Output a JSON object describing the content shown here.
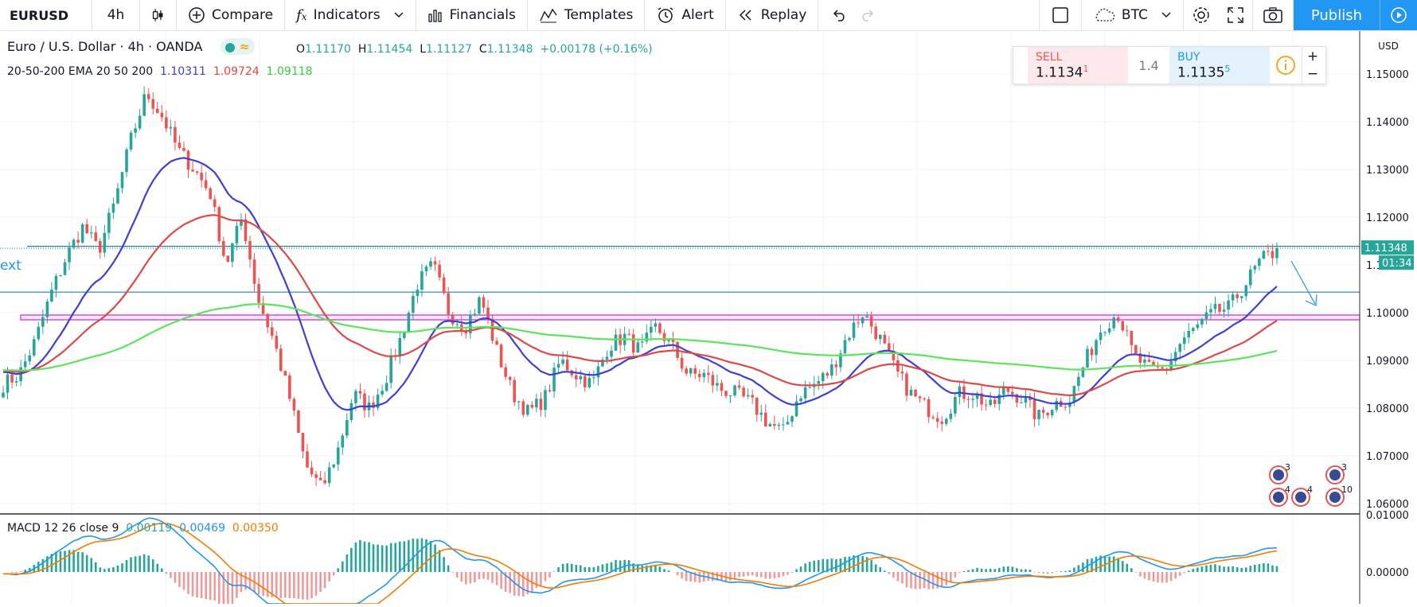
{
  "toolbar": {
    "symbol": "EURUSD",
    "interval": "4h",
    "compare": "Compare",
    "indicators": "Indicators",
    "financials": "Financials",
    "templates": "Templates",
    "alert": "Alert",
    "replay": "Replay",
    "btc": "BTC",
    "publish": "Publish"
  },
  "legend": {
    "title": "Euro / U.S. Dollar · 4h · OANDA",
    "o_label": "O",
    "o": "1.11170",
    "h_label": "H",
    "h": "1.11454",
    "l_label": "L",
    "l": "1.11127",
    "c_label": "C",
    "c": "1.11348",
    "change": "+0.00178 (+0.16%)",
    "ema_label": "20-50-200 EMA 20 50 200",
    "ema20": "1.10311",
    "ema50": "1.09724",
    "ema200": "1.09118"
  },
  "trade": {
    "sell_label": "SELL",
    "sell_price": "1.1134",
    "sell_sup": "1",
    "spread": "1.4",
    "buy_label": "BUY",
    "buy_price": "1.1135",
    "buy_sup": "5",
    "plus": "+",
    "minus": "−"
  },
  "macd": {
    "label": "MACD 12 26 close 9",
    "hist": "0.00119",
    "macd": "0.00469",
    "signal": "0.00350"
  },
  "text_marker": "ext",
  "currency": "USD",
  "last_price": "1.11348",
  "countdown": "01:34",
  "event_badges": [
    "3",
    "4",
    "4",
    "3",
    "10"
  ],
  "colors": {
    "up": "#26a69a",
    "down": "#ef5350",
    "ema20": "#3f3fd4",
    "ema50": "#e04848",
    "ema200": "#5ee35e",
    "macd": "#2196f3",
    "signal": "#f57c00",
    "hline": "#2a7fa8",
    "zone": "#c93ad8"
  },
  "chart_data": [
    {
      "type": "candlestick",
      "title": "Euro / U.S. Dollar · 4h · OANDA",
      "y_axis_ticks": [
        "1.15000",
        "1.14000",
        "1.13000",
        "1.12000",
        "1.11000",
        "1.10000",
        "1.09000",
        "1.08000",
        "1.07000",
        "1.06000"
      ],
      "ylim": [
        1.058,
        1.159
      ],
      "close_path": [
        1.085,
        1.087,
        1.094,
        1.104,
        1.112,
        1.118,
        1.113,
        1.123,
        1.136,
        1.146,
        1.141,
        1.134,
        1.13,
        1.125,
        1.11,
        1.12,
        1.103,
        1.094,
        1.082,
        1.068,
        1.063,
        1.071,
        1.083,
        1.08,
        1.086,
        1.095,
        1.106,
        1.11,
        1.1,
        1.097,
        1.103,
        1.092,
        1.083,
        1.079,
        1.082,
        1.09,
        1.087,
        1.085,
        1.093,
        1.095,
        1.092,
        1.097,
        1.093,
        1.087,
        1.087,
        1.084,
        1.083,
        1.081,
        1.077,
        1.075,
        1.083,
        1.085,
        1.088,
        1.095,
        1.1,
        1.095,
        1.088,
        1.083,
        1.08,
        1.078,
        1.083,
        1.083,
        1.08,
        1.084,
        1.082,
        1.078,
        1.081,
        1.082,
        1.09,
        1.097,
        1.1,
        1.091,
        1.088,
        1.088,
        1.094,
        1.097,
        1.1,
        1.101,
        1.106,
        1.111,
        1.113
      ],
      "ema20_last": 1.10311,
      "ema50_last": 1.09724,
      "ema200_last": 1.09118,
      "horizontal_lines": [
        1.1134,
        1.1043
      ],
      "zone": [
        1.0985,
        1.0995
      ],
      "last_price": 1.11348
    },
    {
      "type": "line",
      "title": "MACD 12 26 close 9",
      "y_axis_ticks": [
        "0.01000",
        "0.00000"
      ],
      "series": [
        {
          "name": "histogram",
          "last": 0.00119
        },
        {
          "name": "MACD",
          "last": 0.00469
        },
        {
          "name": "signal",
          "last": 0.0035
        }
      ]
    }
  ]
}
